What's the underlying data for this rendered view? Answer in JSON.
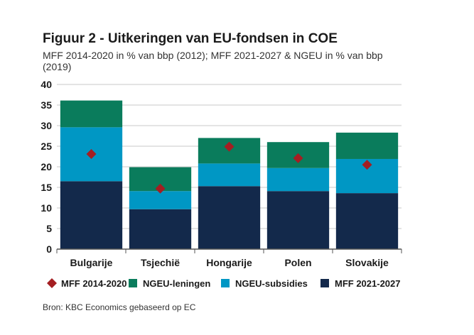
{
  "chart_data": {
    "type": "bar",
    "stacked": true,
    "title": "Figuur 2 - Uitkeringen van EU-fondsen in COE",
    "subtitle": "MFF 2014-2020 in % van bbp (2012); MFF 2021-2027 & NGEU in % van bbp (2019)",
    "source": "Bron: KBC Economics gebaseerd op EC",
    "categories": [
      "Bulgarije",
      "Tsjechië",
      "Hongarije",
      "Polen",
      "Slovakije"
    ],
    "ylim": [
      0,
      40
    ],
    "yticks": [
      "0",
      "5",
      "10",
      "15",
      "20",
      "25",
      "30",
      "35",
      "40"
    ],
    "grid": true,
    "legend_position": "bottom",
    "series": [
      {
        "name": "MFF 2021-2027",
        "kind": "bar",
        "color": "#13294b",
        "values": [
          16.5,
          9.7,
          15.3,
          14.1,
          13.6
        ]
      },
      {
        "name": "NGEU-subsidies",
        "kind": "bar",
        "color": "#0097c4",
        "values": [
          13.1,
          4.4,
          5.5,
          5.6,
          8.3
        ]
      },
      {
        "name": "NGEU-leningen",
        "kind": "bar",
        "color": "#0a7c5c",
        "values": [
          6.5,
          5.8,
          6.2,
          6.3,
          6.4
        ]
      },
      {
        "name": "MFF 2014-2020",
        "kind": "marker",
        "color": "#a41e22",
        "values": [
          23.1,
          14.7,
          24.9,
          22.1,
          20.5
        ]
      }
    ],
    "legend_order": [
      "MFF 2014-2020",
      "NGEU-leningen",
      "NGEU-subsidies",
      "MFF 2021-2027"
    ]
  }
}
